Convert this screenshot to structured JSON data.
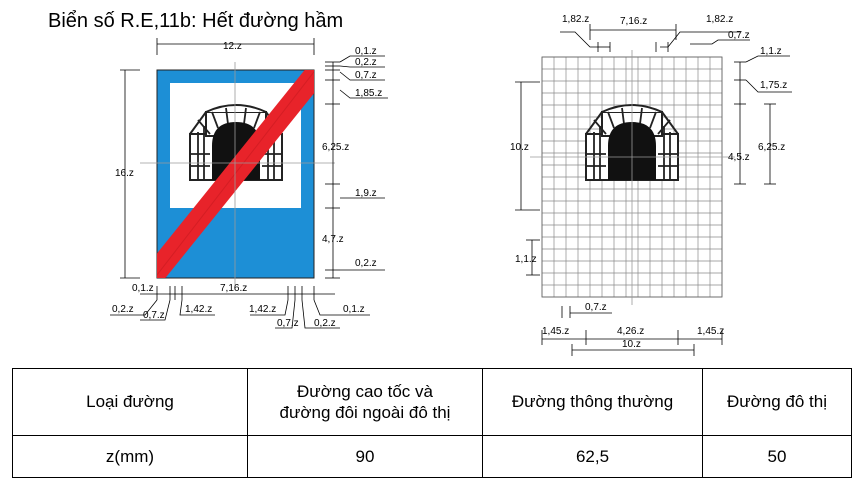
{
  "title": "Biển số R.E,11b: Hết đường hầm",
  "left_dims": {
    "top_width": "12.z",
    "height": "16.z",
    "r1": "0,1.z",
    "r2": "0,2.z",
    "r3": "0,7.z",
    "r4": "1,85.z",
    "r5": "6,25.z",
    "r6": "1,9.z",
    "r7": "4,7.z",
    "r8": "0,2.z",
    "b_left1": "0,1.z",
    "b_mid": "7,16.z",
    "b_left2": "0,2.z",
    "b_left3": "0,7.z",
    "b_left4": "1,42.z",
    "b_right4": "1,42.z",
    "b_right3": "0,7.z",
    "b_right2": "0,2.z",
    "b_right1": "0,1.z"
  },
  "right_dims": {
    "t1": "1,82.z",
    "t2": "7,16.z",
    "t3": "1,82.z",
    "t4": "0,7.z",
    "r1": "1,1.z",
    "r2": "1,75.z",
    "r3": "6,25.z",
    "r4": "4,5.z",
    "left_h": "10.z",
    "cell": "1,1.z",
    "b1": "0,7.z",
    "b2": "1,45.z",
    "b3": "4,26.z",
    "b4": "1,45.z",
    "b5": "10.z"
  },
  "table": {
    "headers": [
      "Loại đường",
      "Đường cao tốc và\nđường đôi ngoài đô thị",
      "Đường thông thường",
      "Đường đô thị"
    ],
    "row_label": "z(mm)",
    "values": [
      "90",
      "62,5",
      "50"
    ]
  },
  "colors": {
    "sign_blue": "#1d8fd6",
    "stripe_red": "#e8232a",
    "grid_gray": "#8a8a8a"
  }
}
